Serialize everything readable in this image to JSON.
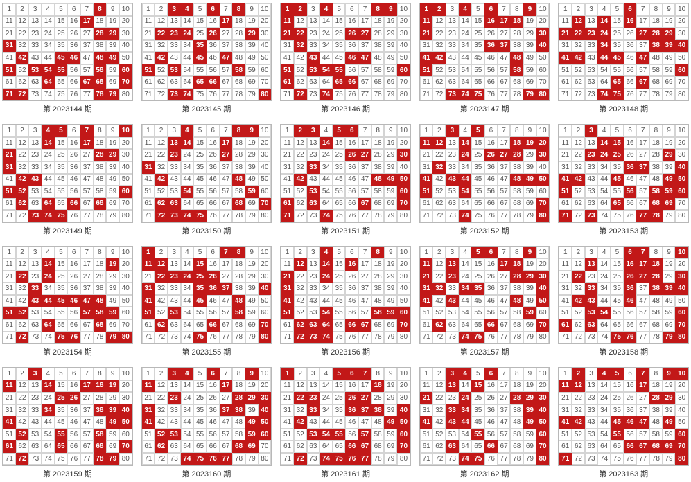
{
  "caption_prefix": "第 ",
  "caption_suffix": " 期",
  "cell_count": 80,
  "colors": {
    "highlight_bg": "#c21818",
    "highlight_fg": "#ffffff",
    "normal_bg": "#ffffff",
    "normal_fg": "#555555",
    "grid_border": "#b8b8b8",
    "cell_border": "#d4d4d4",
    "caption_fg": "#333333"
  },
  "panels": [
    {
      "period": "2023144",
      "highlights": [
        8,
        17,
        28,
        29,
        31,
        42,
        45,
        46,
        48,
        49,
        51,
        53,
        54,
        55,
        58,
        60,
        64,
        67,
        68,
        70,
        71,
        72,
        78,
        79
      ]
    },
    {
      "period": "2023145",
      "highlights": [
        3,
        4,
        6,
        8,
        17,
        22,
        23,
        24,
        26,
        29,
        35,
        42,
        45,
        47,
        51,
        53,
        58,
        65,
        66,
        73,
        74,
        80
      ]
    },
    {
      "period": "2023146",
      "highlights": [
        1,
        2,
        4,
        8,
        9,
        11,
        21,
        22,
        26,
        27,
        32,
        43,
        46,
        47,
        51,
        53,
        54,
        55,
        60,
        61,
        65,
        66,
        72,
        74
      ]
    },
    {
      "period": "2023147",
      "highlights": [
        1,
        2,
        4,
        6,
        9,
        11,
        16,
        17,
        18,
        21,
        30,
        36,
        37,
        40,
        41,
        42,
        48,
        51,
        58,
        73,
        74,
        75,
        79,
        80
      ]
    },
    {
      "period": "2023148",
      "highlights": [
        6,
        12,
        14,
        16,
        21,
        22,
        23,
        24,
        27,
        28,
        29,
        34,
        38,
        39,
        40,
        41,
        42,
        44,
        45,
        47,
        60,
        65,
        67,
        74,
        75
      ]
    },
    {
      "period": "2023149",
      "highlights": [
        4,
        5,
        7,
        10,
        14,
        17,
        21,
        28,
        29,
        31,
        42,
        43,
        51,
        52,
        60,
        62,
        64,
        66,
        68,
        73,
        74,
        75
      ]
    },
    {
      "period": "2023150",
      "highlights": [
        4,
        8,
        9,
        13,
        14,
        17,
        23,
        27,
        31,
        42,
        48,
        54,
        59,
        62,
        63,
        68,
        70,
        72,
        73,
        74,
        75
      ]
    },
    {
      "period": "2023151",
      "highlights": [
        2,
        3,
        5,
        6,
        14,
        26,
        27,
        30,
        33,
        42,
        48,
        49,
        50,
        53,
        60,
        61,
        63,
        67,
        70,
        71,
        74
      ]
    },
    {
      "period": "2023152",
      "highlights": [
        3,
        5,
        11,
        12,
        14,
        18,
        19,
        20,
        24,
        26,
        27,
        28,
        30,
        32,
        41,
        43,
        44,
        48,
        49,
        50,
        51,
        54,
        70,
        74,
        80
      ]
    },
    {
      "period": "2023153",
      "highlights": [
        3,
        14,
        15,
        23,
        24,
        25,
        29,
        36,
        37,
        40,
        41,
        42,
        45,
        49,
        50,
        51,
        56,
        58,
        59,
        60,
        65,
        68,
        69,
        71,
        73,
        77,
        78
      ]
    },
    {
      "period": "2023154",
      "highlights": [
        14,
        19,
        22,
        24,
        33,
        43,
        44,
        45,
        46,
        47,
        48,
        51,
        52,
        57,
        58,
        59,
        64,
        68,
        72,
        75,
        76,
        79,
        80
      ]
    },
    {
      "period": "2023155",
      "highlights": [
        1,
        7,
        8,
        11,
        12,
        15,
        22,
        23,
        24,
        25,
        26,
        31,
        35,
        36,
        37,
        40,
        41,
        45,
        48,
        51,
        53,
        58,
        62,
        66,
        70,
        75,
        80
      ]
    },
    {
      "period": "2023156",
      "highlights": [
        4,
        8,
        12,
        14,
        16,
        21,
        24,
        31,
        41,
        51,
        54,
        58,
        59,
        60,
        62,
        63,
        64,
        66,
        67,
        70,
        72,
        73,
        74
      ]
    },
    {
      "period": "2023157",
      "highlights": [
        5,
        6,
        9,
        11,
        13,
        17,
        18,
        21,
        23,
        28,
        29,
        30,
        31,
        32,
        34,
        35,
        40,
        41,
        43,
        48,
        50,
        59,
        62,
        66,
        70,
        74,
        75
      ]
    },
    {
      "period": "2023158",
      "highlights": [
        6,
        7,
        10,
        13,
        16,
        17,
        18,
        22,
        26,
        27,
        28,
        30,
        33,
        36,
        38,
        39,
        40,
        42,
        43,
        46,
        53,
        54,
        60,
        61,
        63,
        70,
        75,
        76,
        79,
        80
      ]
    },
    {
      "period": "2023159",
      "highlights": [
        3,
        11,
        14,
        17,
        18,
        19,
        25,
        26,
        34,
        38,
        39,
        40,
        41,
        49,
        50,
        52,
        55,
        58,
        61,
        65,
        68,
        70,
        72,
        78,
        79
      ]
    },
    {
      "period": "2023160",
      "highlights": [
        3,
        4,
        6,
        9,
        11,
        17,
        23,
        28,
        29,
        30,
        31,
        37,
        38,
        40,
        41,
        49,
        50,
        52,
        53,
        59,
        60,
        62,
        68,
        69,
        74,
        75,
        76,
        77
      ]
    },
    {
      "period": "2023161",
      "highlights": [
        1,
        5,
        6,
        7,
        18,
        22,
        23,
        26,
        27,
        33,
        36,
        37,
        38,
        40,
        42,
        49,
        50,
        53,
        54,
        55,
        57,
        60,
        66,
        67,
        70,
        72,
        74,
        75,
        76,
        77
      ]
    },
    {
      "period": "2023162",
      "highlights": [
        3,
        4,
        6,
        13,
        15,
        21,
        24,
        28,
        29,
        30,
        33,
        34,
        39,
        40,
        41,
        43,
        44,
        49,
        50,
        55,
        60,
        63,
        66,
        70,
        74,
        75,
        80
      ]
    },
    {
      "period": "2023163",
      "highlights": [
        2,
        4,
        5,
        7,
        9,
        10,
        11,
        12,
        17,
        28,
        29,
        41,
        42,
        45,
        46,
        47,
        49,
        55,
        60,
        66,
        67,
        68,
        69,
        70,
        71,
        80
      ]
    }
  ]
}
